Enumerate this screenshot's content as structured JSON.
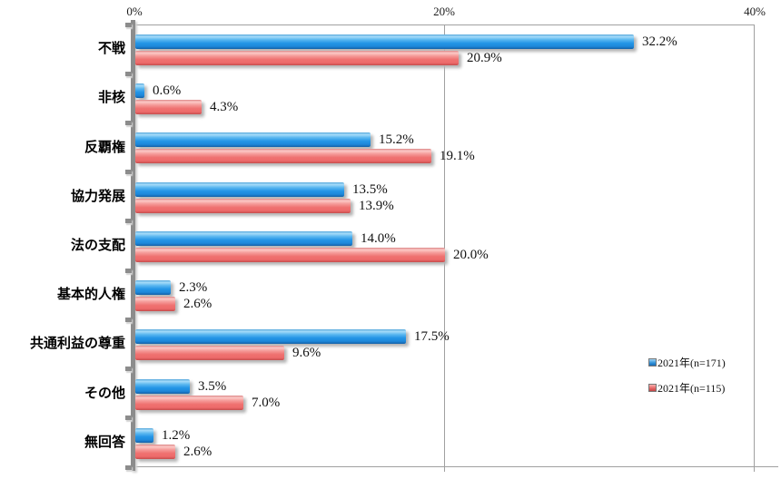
{
  "chart_data": {
    "type": "bar",
    "orientation": "horizontal",
    "title": "",
    "categories": [
      "不戦",
      "非核",
      "反覇権",
      "協力発展",
      "法の支配",
      "基本的人権",
      "共通利益の尊重",
      "その他",
      "無回答"
    ],
    "series": [
      {
        "name": "2021年(n=171)",
        "color": "#2395e6",
        "values": [
          32.2,
          0.6,
          15.2,
          13.5,
          14.0,
          2.3,
          17.5,
          3.5,
          1.2
        ],
        "labels": [
          "32.2%",
          "0.6%",
          "15.2%",
          "13.5%",
          "14.0%",
          "2.3%",
          "17.5%",
          "3.5%",
          "1.2%"
        ]
      },
      {
        "name": "2021年(n=115)",
        "color": "#ee6b6b",
        "values": [
          20.9,
          4.3,
          19.1,
          13.9,
          20.0,
          2.6,
          9.6,
          7.0,
          2.6
        ],
        "labels": [
          "20.9%",
          "4.3%",
          "19.1%",
          "13.9%",
          "20.0%",
          "2.6%",
          "9.6%",
          "7.0%",
          "2.6%"
        ]
      }
    ],
    "xlim": [
      0,
      40
    ],
    "x_ticks": [
      {
        "label": "0%",
        "value": 0
      },
      {
        "label": "20%",
        "value": 20
      },
      {
        "label": "40%",
        "value": 40
      }
    ],
    "grid": "vertical gridlines at 20% and 40%",
    "legend_position": "right, lower-middle inside chart",
    "axis_color": "#8c8c8c",
    "gridline_color": "#a0a0a0",
    "value_label_color": "#111111"
  }
}
